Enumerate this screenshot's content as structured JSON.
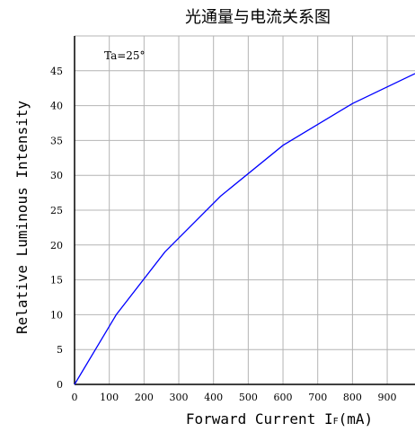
{
  "chart_data": {
    "type": "line",
    "title": "光通量与电流关系图",
    "xlabel": "Forward Current I",
    "xlabel_sub": "F",
    "xlabel_unit": "(mA)",
    "ylabel": "Relative Luminous Intensity",
    "annotation": "Ta=25°",
    "xlim": [
      0,
      980
    ],
    "ylim": [
      0,
      50
    ],
    "x_ticks": [
      0,
      100,
      200,
      300,
      400,
      500,
      600,
      700,
      800,
      900
    ],
    "y_ticks": [
      0,
      5,
      10,
      15,
      20,
      25,
      30,
      35,
      40,
      45
    ],
    "grid": true,
    "series_color": "#0000ff",
    "series": [
      {
        "x": [
          0,
          120,
          260,
          420,
          600,
          800,
          980
        ],
        "y": [
          0,
          10,
          19,
          27,
          34.3,
          40.3,
          44.6
        ]
      }
    ]
  }
}
